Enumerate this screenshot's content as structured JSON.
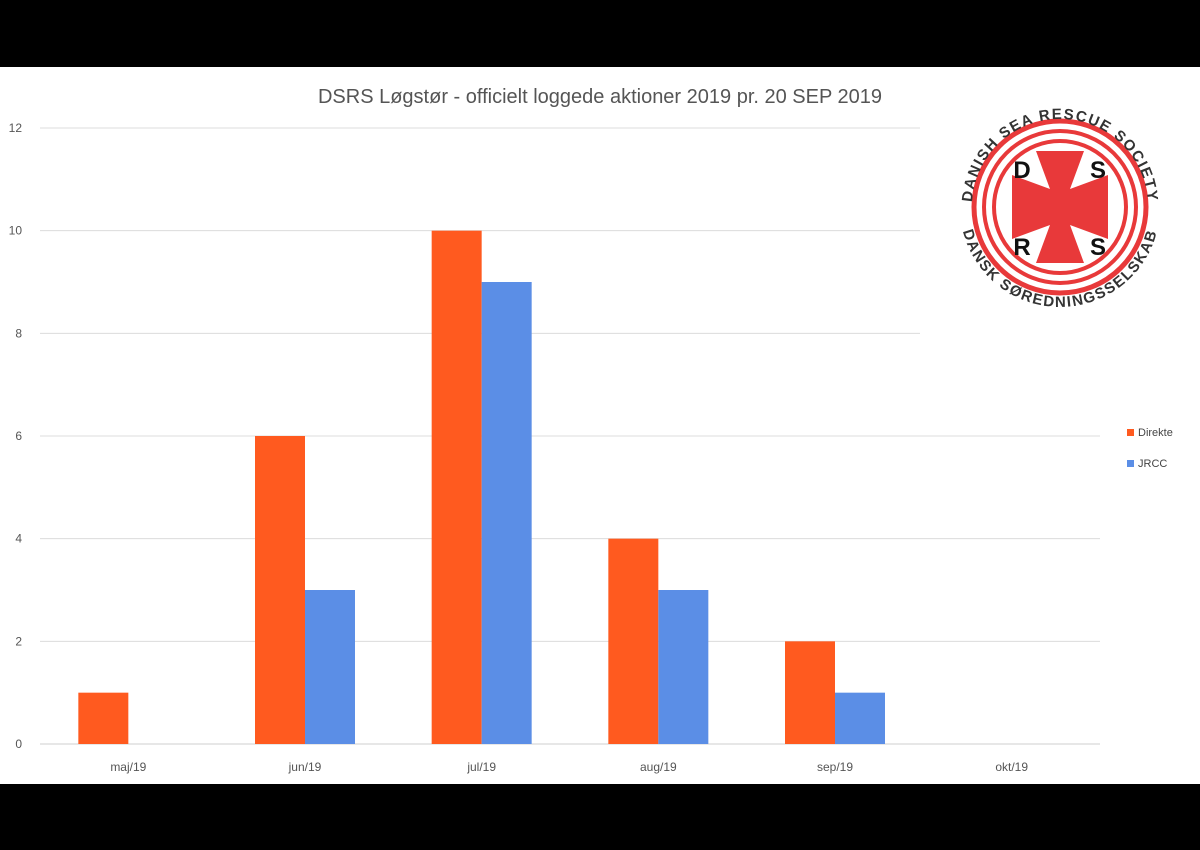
{
  "chart_data": {
    "type": "bar",
    "title": "DSRS Løgstør - officielt loggede aktioner 2019 pr. 20 SEP 2019",
    "xlabel": "",
    "ylabel": "",
    "categories": [
      "maj/19",
      "jun/19",
      "jul/19",
      "aug/19",
      "sep/19",
      "okt/19"
    ],
    "series": [
      {
        "name": "Direkte",
        "color": "#FF5A1F",
        "values": [
          1,
          6,
          10,
          4,
          2,
          0
        ]
      },
      {
        "name": "JRCC",
        "color": "#5B8EE6",
        "values": [
          0,
          3,
          9,
          3,
          1,
          0
        ]
      }
    ],
    "ylim": [
      0,
      12
    ],
    "yticks": [
      0,
      2,
      4,
      6,
      8,
      10,
      12
    ],
    "grid": true,
    "legend": "right"
  },
  "logo": {
    "top_text": "DANISH SEA RESCUE SOCIETY",
    "bottom_text": "DANSK SØREDNINGSSELSKAB",
    "letters": [
      "D",
      "S",
      "R",
      "S"
    ],
    "color": "#E8393A"
  }
}
